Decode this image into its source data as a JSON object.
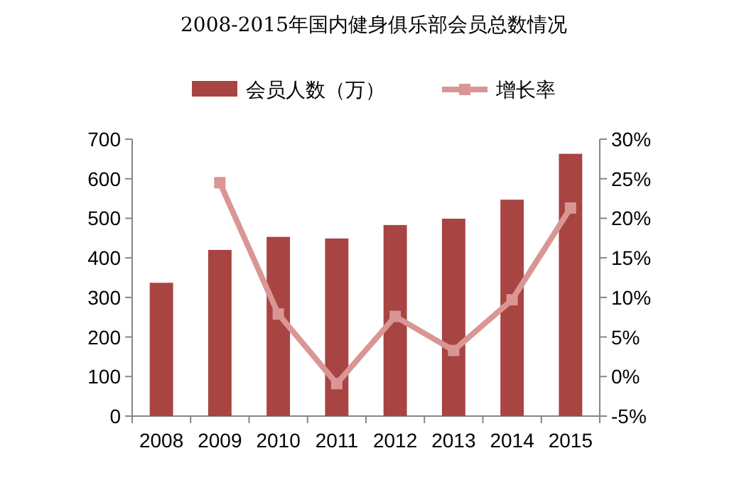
{
  "chart_data": {
    "type": "bar",
    "title": "2008-2015年国内健身俱乐部会员总数情况",
    "categories": [
      "2008",
      "2009",
      "2010",
      "2011",
      "2012",
      "2013",
      "2014",
      "2015"
    ],
    "series": [
      {
        "name": "会员人数（万）",
        "color": "#a84442",
        "values": [
          337,
          420,
          453,
          449,
          483,
          499,
          547,
          663
        ]
      },
      {
        "name": "增长率",
        "type": "line",
        "axis": "y2",
        "color": "#d99694",
        "marker": "square",
        "values": [
          null,
          24.5,
          7.9,
          -0.9,
          7.6,
          3.3,
          9.7,
          21.3
        ]
      }
    ],
    "ylim": [
      0,
      700
    ],
    "yticks": [
      0,
      100,
      200,
      300,
      400,
      500,
      600,
      700
    ],
    "y2lim": [
      -5,
      30
    ],
    "y2ticks": [
      {
        "value": -5,
        "label": "-5%"
      },
      {
        "value": 0,
        "label": "0%"
      },
      {
        "value": 5,
        "label": "5%"
      },
      {
        "value": 10,
        "label": "10%"
      },
      {
        "value": 15,
        "label": "15%"
      },
      {
        "value": 20,
        "label": "20%"
      },
      {
        "value": 25,
        "label": "25%"
      },
      {
        "value": 30,
        "label": "30%"
      }
    ],
    "grid": false,
    "legend": "top"
  }
}
